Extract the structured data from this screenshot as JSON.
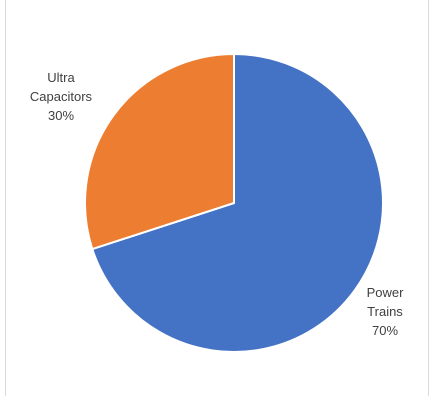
{
  "chart_data": {
    "type": "pie",
    "title": "",
    "start_angle_deg": 0,
    "direction": "clockwise",
    "legend": "none",
    "slices": [
      {
        "name": "Power Trains",
        "label_lines": [
          "Power",
          "Trains",
          "70%"
        ],
        "value": 70,
        "color": "#4472c4"
      },
      {
        "name": "Ultra Capacitors",
        "label_lines": [
          "Ultra",
          "Capacitors",
          "30%"
        ],
        "value": 30,
        "color": "#ed7d31"
      }
    ]
  }
}
